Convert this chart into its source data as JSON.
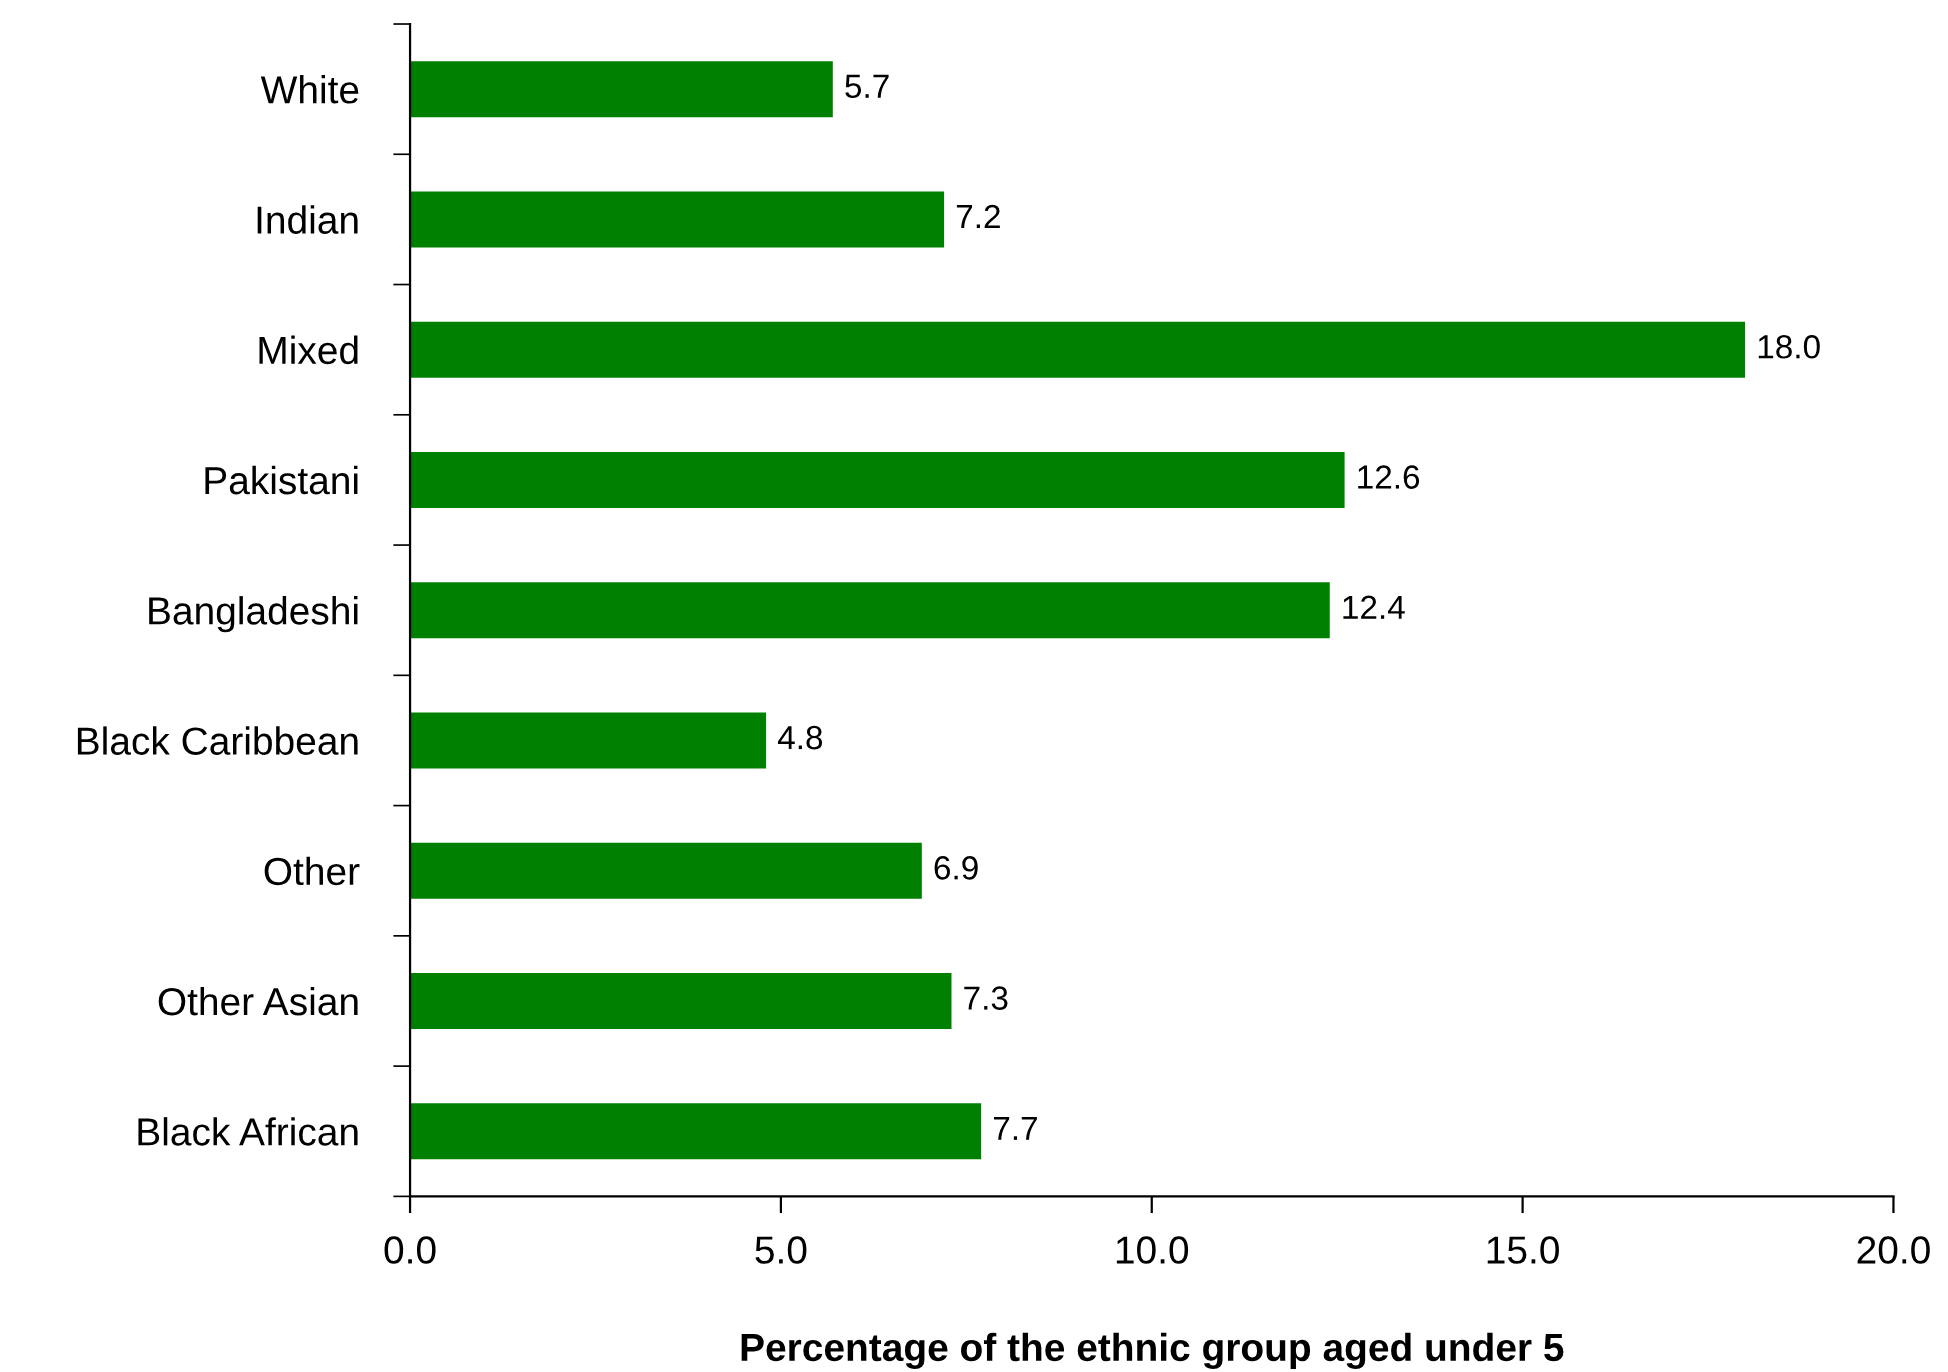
{
  "chart_data": {
    "type": "bar",
    "orientation": "horizontal",
    "xlabel": "Percentage of the ethnic group aged under 5",
    "categories": [
      "White",
      "Indian",
      "Mixed",
      "Pakistani",
      "Bangladeshi",
      "Black Caribbean",
      "Other",
      "Other Asian",
      "Black African"
    ],
    "values": [
      5.7,
      7.2,
      18.0,
      12.6,
      12.4,
      4.8,
      6.9,
      7.3,
      7.7
    ],
    "color": "#008000",
    "xlim": [
      0,
      20
    ],
    "xticks": [
      {
        "value": 0,
        "label": "0.0"
      },
      {
        "value": 5,
        "label": "5.0"
      },
      {
        "value": 10,
        "label": "10.0"
      },
      {
        "value": 15,
        "label": "15.0"
      },
      {
        "value": 20,
        "label": "20.0"
      }
    ],
    "value_labels": [
      "5.7",
      "7.2",
      "18.0",
      "12.6",
      "12.4",
      "4.8",
      "6.9",
      "7.3",
      "7.7"
    ],
    "grid": false,
    "legend": false
  }
}
